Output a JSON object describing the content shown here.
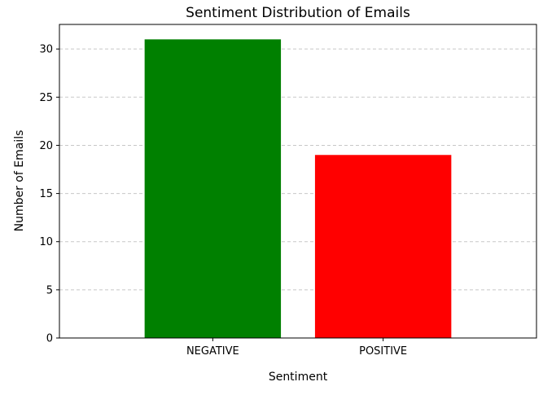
{
  "chart_data": {
    "type": "bar",
    "title": "Sentiment Distribution of Emails",
    "xlabel": "Sentiment",
    "ylabel": "Number of Emails",
    "categories": [
      "NEGATIVE",
      "POSITIVE"
    ],
    "values": [
      31,
      19
    ],
    "colors": [
      "#008000",
      "#ff0000"
    ],
    "ylim": [
      0,
      32.55
    ],
    "yticks": [
      0,
      5,
      10,
      15,
      20,
      25,
      30
    ],
    "grid": {
      "axis": "y",
      "style": "dashed",
      "color": "#c8c8c8"
    }
  }
}
